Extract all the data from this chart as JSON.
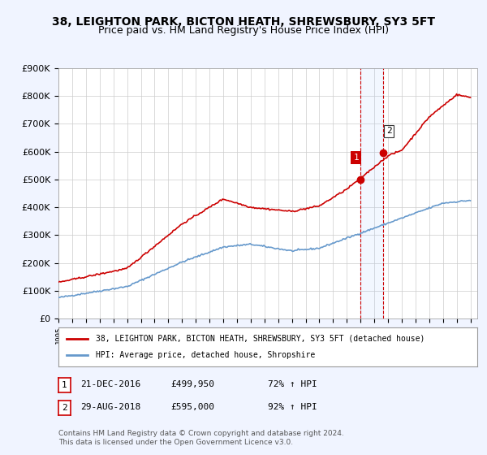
{
  "title": "38, LEIGHTON PARK, BICTON HEATH, SHREWSBURY, SY3 5FT",
  "subtitle": "Price paid vs. HM Land Registry's House Price Index (HPI)",
  "ylabel_ticks": [
    "£0",
    "£100K",
    "£200K",
    "£300K",
    "£400K",
    "£500K",
    "£600K",
    "£700K",
    "£800K",
    "£900K"
  ],
  "ytick_vals": [
    0,
    100000,
    200000,
    300000,
    400000,
    500000,
    600000,
    700000,
    800000,
    900000
  ],
  "ylim": [
    0,
    900000
  ],
  "xlim_start": 1995.5,
  "xlim_end": 2025.5,
  "hpi_color": "#6699cc",
  "price_color": "#cc0000",
  "marker_color": "#cc0000",
  "sale1_year": 2016.97,
  "sale1_price": 499950,
  "sale2_year": 2018.66,
  "sale2_price": 595000,
  "sale1_label": "1",
  "sale2_label": "2",
  "legend_line1": "38, LEIGHTON PARK, BICTON HEATH, SHREWSBURY, SY3 5FT (detached house)",
  "legend_line2": "HPI: Average price, detached house, Shropshire",
  "annot1_date": "21-DEC-2016",
  "annot1_price": "£499,950",
  "annot1_hpi": "72% ↑ HPI",
  "annot2_date": "29-AUG-2018",
  "annot2_price": "£595,000",
  "annot2_hpi": "92% ↑ HPI",
  "footer": "Contains HM Land Registry data © Crown copyright and database right 2024.\nThis data is licensed under the Open Government Licence v3.0.",
  "background_color": "#f0f4ff",
  "plot_bg_color": "#ffffff",
  "grid_color": "#cccccc",
  "title_fontsize": 10,
  "subtitle_fontsize": 9,
  "tick_fontsize": 8
}
